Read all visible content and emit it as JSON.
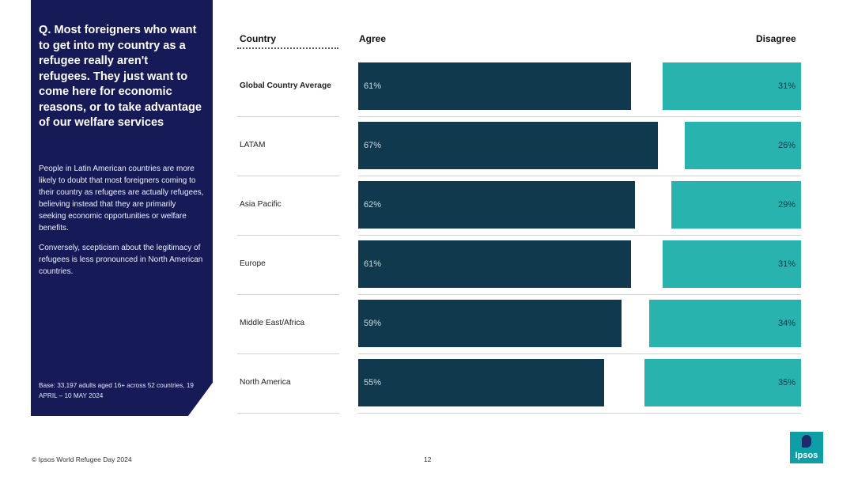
{
  "side_panel": {
    "question": "Q. Most foreigners who want to get into my country as a refugee really aren't refugees. They just want to come here for economic reasons, or to take advantage of our welfare services",
    "paragraph1": "People in Latin American countries are more likely to doubt that most foreigners coming to their country as refugees are actually refugees, believing instead that they are primarily seeking economic opportunities or welfare benefits.",
    "paragraph2": "Conversely, scepticism about the legitimacy of refugees is less pronounced in North American countries.",
    "base": "Base: 33,197 adults aged 16+ across 52 countries, 19 APRIL – 10 MAY 2024"
  },
  "chart_data": {
    "type": "bar",
    "headers": {
      "category": "Country",
      "agree": "Agree",
      "disagree": "Disagree"
    },
    "categories": [
      "Global Country Average",
      "LATAM",
      "Asia Pacific",
      "Europe",
      "Middle East/Africa",
      "North America"
    ],
    "series": [
      {
        "name": "Agree",
        "values": [
          61,
          67,
          62,
          61,
          59,
          55
        ],
        "labels": [
          "61%",
          "67%",
          "62%",
          "61%",
          "59%",
          "55%"
        ]
      },
      {
        "name": "Disagree",
        "values": [
          31,
          26,
          29,
          31,
          34,
          35
        ],
        "labels": [
          "31%",
          "26%",
          "29%",
          "31%",
          "34%",
          "35%"
        ]
      }
    ],
    "colors": {
      "agree": "#10394d",
      "disagree": "#29b3ae"
    },
    "bold_category_index": 0
  },
  "footer": {
    "source": "© Ipsos World Refugee Day 2024",
    "page_number": "12",
    "logo_text": "Ipsos"
  }
}
